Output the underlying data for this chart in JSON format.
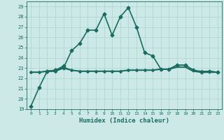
{
  "title": "",
  "xlabel": "Humidex (Indice chaleur)",
  "xlim": [
    -0.5,
    23.5
  ],
  "ylim": [
    19,
    29.5
  ],
  "yticks": [
    19,
    20,
    21,
    22,
    23,
    24,
    25,
    26,
    27,
    28,
    29
  ],
  "xticks": [
    0,
    1,
    2,
    3,
    4,
    5,
    6,
    7,
    8,
    9,
    10,
    11,
    12,
    13,
    14,
    15,
    16,
    17,
    18,
    19,
    20,
    21,
    22,
    23
  ],
  "background_color": "#cce9e7",
  "grid_color": "#aad4d0",
  "line_color": "#1a6b60",
  "lines": [
    {
      "x": [
        0,
        1,
        2,
        3,
        4,
        5,
        6,
        7,
        8,
        9,
        10,
        11,
        12,
        13,
        14,
        15,
        16,
        17,
        18,
        19,
        20,
        21,
        22,
        23
      ],
      "y": [
        19.3,
        21.1,
        22.7,
        22.8,
        23.0,
        24.7,
        25.4,
        26.7,
        26.7,
        28.3,
        26.2,
        28.0,
        28.9,
        27.0,
        24.5,
        24.2,
        22.9,
        22.9,
        23.3,
        23.3,
        22.8,
        22.6,
        22.7,
        22.6
      ],
      "marker": "D",
      "markersize": 2.5,
      "linewidth": 1.2
    },
    {
      "x": [
        0,
        1,
        2,
        3,
        4,
        5,
        6,
        7,
        8,
        9,
        10,
        11,
        12,
        13,
        14,
        15,
        16,
        17,
        18,
        19,
        20,
        21,
        22,
        23
      ],
      "y": [
        22.6,
        22.6,
        22.7,
        22.7,
        23.1,
        22.8,
        22.7,
        22.7,
        22.7,
        22.7,
        22.7,
        22.7,
        22.8,
        22.8,
        22.8,
        22.8,
        22.9,
        22.9,
        23.3,
        23.3,
        22.8,
        22.7,
        22.7,
        22.6
      ],
      "marker": "D",
      "markersize": 2.0,
      "linewidth": 1.0
    },
    {
      "x": [
        0,
        1,
        2,
        3,
        4,
        5,
        6,
        7,
        8,
        9,
        10,
        11,
        12,
        13,
        14,
        15,
        16,
        17,
        18,
        19,
        20,
        21,
        22,
        23
      ],
      "y": [
        22.6,
        22.6,
        22.7,
        22.7,
        23.0,
        22.8,
        22.7,
        22.7,
        22.7,
        22.7,
        22.7,
        22.7,
        22.8,
        22.8,
        22.8,
        22.8,
        22.9,
        22.9,
        23.1,
        23.1,
        22.7,
        22.6,
        22.6,
        22.6
      ],
      "marker": null,
      "markersize": 0,
      "linewidth": 1.4
    },
    {
      "x": [
        2,
        3,
        4
      ],
      "y": [
        22.7,
        22.8,
        23.2
      ],
      "marker": "D",
      "markersize": 2.5,
      "linewidth": 1.2
    }
  ]
}
